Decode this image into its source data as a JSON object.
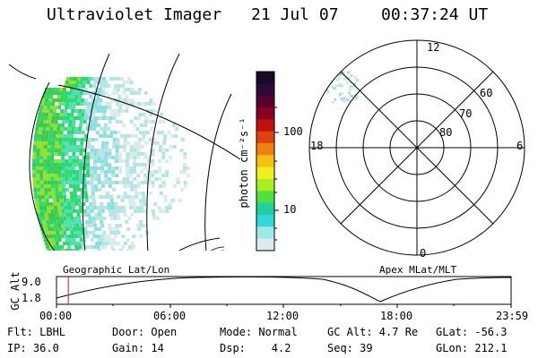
{
  "header": {
    "instrument": "Ultraviolet Imager",
    "date": "21 Jul 07",
    "time": "00:37:24 UT"
  },
  "colorbar": {
    "label": "photon cm⁻²s⁻¹",
    "ticks": [
      "100",
      "10"
    ],
    "colors": [
      "#1a0a2a",
      "#2b0a3a",
      "#5a0030",
      "#8a0020",
      "#c01010",
      "#e04010",
      "#f08010",
      "#f8c010",
      "#f0f020",
      "#a8f020",
      "#50e040",
      "#20d0a0",
      "#30d8d8",
      "#a0e8e8",
      "#d8ecec"
    ]
  },
  "polar_plot": {
    "mlt_labels": {
      "top": "12",
      "left": "18",
      "right": "6",
      "bottom": "0"
    },
    "lat_labels": [
      "60",
      "70",
      "80"
    ]
  },
  "timeline": {
    "left_label": "Geographic Lat/Lon",
    "right_label": "Apex MLat/MLT",
    "y_axis_label": "GC Alt",
    "y_ticks": [
      "9.0",
      "1.8"
    ],
    "x_ticks": [
      "00:00",
      "06:00",
      "12:00",
      "18:00",
      "23:59"
    ],
    "marker_time_fraction": 0.026
  },
  "status": {
    "row1": [
      {
        "key": "flt",
        "text": "Flt: LBHL"
      },
      {
        "key": "door",
        "text": "Door: Open"
      },
      {
        "key": "mode",
        "text": "Mode: Normal"
      },
      {
        "key": "gcalt",
        "text": "GC Alt: 4.7 Re"
      },
      {
        "key": "glat",
        "text": "GLat: -56.3"
      }
    ],
    "row2": [
      {
        "key": "ip",
        "text": "IP: 36.0"
      },
      {
        "key": "gain",
        "text": "Gain: 14"
      },
      {
        "key": "dsp",
        "text": "Dsp:    4.2"
      },
      {
        "key": "seq",
        "text": "Seq: 39"
      },
      {
        "key": "glon",
        "text": "GLon: 212.1"
      }
    ]
  }
}
